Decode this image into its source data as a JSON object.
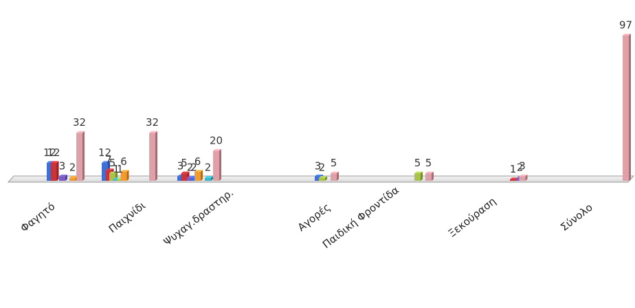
{
  "chart_data": {
    "type": "bar",
    "title": "",
    "xlabel": "",
    "ylabel": "",
    "grid": false,
    "categories": [
      "Φαγητό",
      "Παιχνίδι",
      "Ψυχαγ.δραστηρ.",
      "Αγορές",
      "Παιδική Φροντίδα",
      "Ξεκούραση",
      "Σύνολο"
    ],
    "ylim": [
      0,
      100
    ],
    "colors": [
      "#3d6fd6",
      "#c8343a",
      "#7b5cc4",
      "#38b8c8",
      "#f29a2e",
      "#a9c24a",
      "#e0a0a8"
    ],
    "bars": [
      {
        "category": 0,
        "label": "12",
        "value": 12,
        "color": 0,
        "x": 0.0
      },
      {
        "category": 0,
        "label": "12",
        "value": 12,
        "color": 1,
        "x": 0.55
      },
      {
        "category": 0,
        "label": "3",
        "value": 3,
        "color": 2,
        "x": 1.8
      },
      {
        "category": 0,
        "label": "2",
        "value": 2,
        "color": 4,
        "x": 3.3
      },
      {
        "category": 0,
        "label": "32",
        "value": 32,
        "color": 6,
        "x": 4.3
      },
      {
        "category": 1,
        "label": "12",
        "value": 12,
        "color": 0,
        "x": 0.0
      },
      {
        "category": 1,
        "label": "7",
        "value": 7,
        "color": 1,
        "x": 0.55
      },
      {
        "category": 1,
        "label": "5",
        "value": 5,
        "color": 5,
        "x": 1.1
      },
      {
        "category": 1,
        "label": "1",
        "value": 1,
        "color": 3,
        "x": 1.65
      },
      {
        "category": 1,
        "label": "1",
        "value": 1,
        "color": 5,
        "x": 2.2
      },
      {
        "category": 1,
        "label": "6",
        "value": 6,
        "color": 4,
        "x": 2.75
      },
      {
        "category": 1,
        "label": "32",
        "value": 32,
        "color": 6,
        "x": 6.9
      },
      {
        "category": 2,
        "label": "3",
        "value": 3,
        "color": 0,
        "x": 0.0
      },
      {
        "category": 2,
        "label": "5",
        "value": 5,
        "color": 1,
        "x": 0.55
      },
      {
        "category": 2,
        "label": "2",
        "value": 2,
        "color": 2,
        "x": 1.4
      },
      {
        "category": 2,
        "label": "2",
        "value": 2,
        "color": 0,
        "x": 1.95
      },
      {
        "category": 2,
        "label": "6",
        "value": 6,
        "color": 4,
        "x": 2.5
      },
      {
        "category": 2,
        "label": "2",
        "value": 2,
        "color": 3,
        "x": 4.0
      },
      {
        "category": 2,
        "label": "20",
        "value": 20,
        "color": 6,
        "x": 5.2
      },
      {
        "category": 3,
        "label": "3",
        "value": 3,
        "color": 0,
        "x": 0.0
      },
      {
        "category": 3,
        "label": "2",
        "value": 2,
        "color": 5,
        "x": 0.6
      },
      {
        "category": 3,
        "label": "5",
        "value": 5,
        "color": 6,
        "x": 2.3
      },
      {
        "category": 4,
        "label": "5",
        "value": 5,
        "color": 5,
        "x": 0.0
      },
      {
        "category": 4,
        "label": "5",
        "value": 5,
        "color": 6,
        "x": 1.6
      },
      {
        "category": 5,
        "label": "1",
        "value": 1,
        "color": 1,
        "x": 0.0
      },
      {
        "category": 5,
        "label": "2",
        "value": 2,
        "color": 2,
        "x": 1.0
      },
      {
        "category": 5,
        "label": "3",
        "value": 3,
        "color": 6,
        "x": 1.35
      },
      {
        "category": 6,
        "label": "97",
        "value": 97,
        "color": 6,
        "x": 0.0
      }
    ]
  }
}
